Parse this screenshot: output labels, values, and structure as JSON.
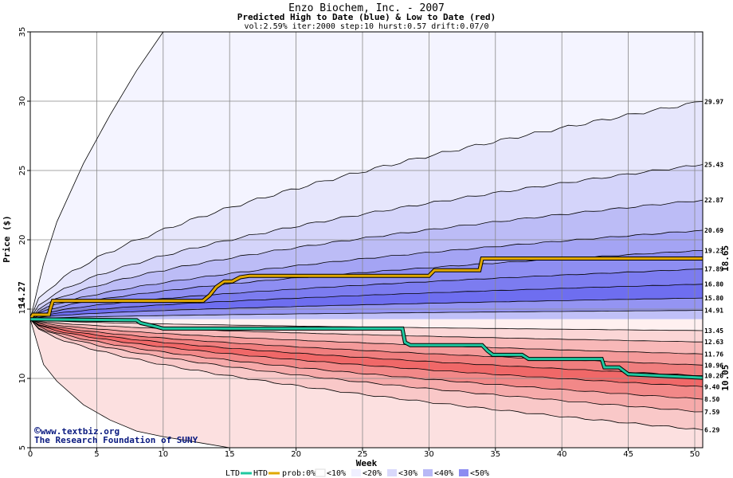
{
  "colors": {
    "htd_line": "#e0a800",
    "ltd_line": "#20c8a0",
    "blue_band_dark": "#6e6ef0",
    "red_band_dark": "#f06868",
    "start_label": "#006000",
    "end_high_label": "#a07800",
    "end_low_label": "#008060"
  },
  "chart_data": {
    "type": "area",
    "title": "Enzo Biochem, Inc. - 2007",
    "subtitle": "Predicted High to Date (blue) &  Low to Date (red)",
    "params": "vol:2.59% iter:2000 step:10 hurst:0.57 drift:0.07/0",
    "xlabel": "Week",
    "ylabel": "Price ($)",
    "xlim": [
      0,
      50.6
    ],
    "ylim": [
      5,
      35
    ],
    "x_ticks": [
      0,
      5,
      10,
      15,
      20,
      25,
      30,
      35,
      40,
      45,
      50
    ],
    "y_ticks": [
      5,
      10,
      15,
      20,
      25,
      30,
      35
    ],
    "grid": true,
    "start_price": 14.27,
    "start_price_label": "14.27",
    "end_high_label": "18.65",
    "end_low_label": "10.05",
    "high_band_end_values": [
      29.97,
      25.43,
      22.87,
      20.69,
      19.23,
      17.89,
      16.8,
      15.8,
      14.91
    ],
    "high_band_end_labels": [
      "29.97",
      "25.43",
      "22.87",
      "20.69",
      "19.23",
      "17.89",
      "16.80",
      "15.80",
      "14.91"
    ],
    "low_band_end_values": [
      13.45,
      12.63,
      11.76,
      10.96,
      10.2,
      9.4,
      8.5,
      7.59,
      6.29
    ],
    "low_band_end_labels": [
      "13.45",
      "12.63",
      "11.76",
      "10.96",
      "10.20",
      "9.40",
      "8.50",
      "7.59",
      "6.29"
    ],
    "outer_high_curve": [
      [
        0,
        14.27
      ],
      [
        1,
        18.3
      ],
      [
        2,
        21.3
      ],
      [
        4,
        25.5
      ],
      [
        6,
        29.0
      ],
      [
        8,
        32.2
      ],
      [
        10,
        35.0
      ]
    ],
    "outer_low_curve": [
      [
        0,
        14.27
      ],
      [
        1,
        11.0
      ],
      [
        2,
        9.8
      ],
      [
        4,
        8.1
      ],
      [
        6,
        7.0
      ],
      [
        8,
        6.2
      ],
      [
        10,
        5.8
      ],
      [
        15,
        5.0
      ]
    ],
    "series": [
      {
        "name": "HTD",
        "points": [
          [
            0,
            14.27
          ],
          [
            0.2,
            14.6
          ],
          [
            1.4,
            14.6
          ],
          [
            1.5,
            15.0
          ],
          [
            1.7,
            15.6
          ],
          [
            13.0,
            15.6
          ],
          [
            13.5,
            16.0
          ],
          [
            14.0,
            16.6
          ],
          [
            14.6,
            17.0
          ],
          [
            15.2,
            17.0
          ],
          [
            15.8,
            17.3
          ],
          [
            16.5,
            17.4
          ],
          [
            30.0,
            17.4
          ],
          [
            30.4,
            17.8
          ],
          [
            33.8,
            17.8
          ],
          [
            34.0,
            18.65
          ],
          [
            50.6,
            18.65
          ]
        ]
      },
      {
        "name": "LTD",
        "points": [
          [
            0,
            14.27
          ],
          [
            8.0,
            14.2
          ],
          [
            8.3,
            14.0
          ],
          [
            9.2,
            13.8
          ],
          [
            9.6,
            13.7
          ],
          [
            10.0,
            13.6
          ],
          [
            28.0,
            13.6
          ],
          [
            28.2,
            12.6
          ],
          [
            28.6,
            12.4
          ],
          [
            34.0,
            12.4
          ],
          [
            34.4,
            12.0
          ],
          [
            34.8,
            11.7
          ],
          [
            37.0,
            11.7
          ],
          [
            37.5,
            11.4
          ],
          [
            43.0,
            11.4
          ],
          [
            43.2,
            10.8
          ],
          [
            44.3,
            10.8
          ],
          [
            45.0,
            10.3
          ],
          [
            50.6,
            10.05
          ]
        ]
      }
    ],
    "legend": {
      "placement": "bottom",
      "ltd": "LTD",
      "htd": "HTD",
      "prob": "prob:0%",
      "entries": [
        "<10%",
        "<20%",
        "<30%",
        "<40%",
        "<50%"
      ],
      "swatch_colors": [
        "#ffffff",
        "#f0f0ff",
        "#d9d9fb",
        "#b8b8f6",
        "#8c8cf1",
        "#6e6ef0"
      ]
    }
  },
  "credit": {
    "copyright_symbol": "©",
    "line1": "www.textbiz.org",
    "line2": "The Research Foundation of SUNY"
  }
}
